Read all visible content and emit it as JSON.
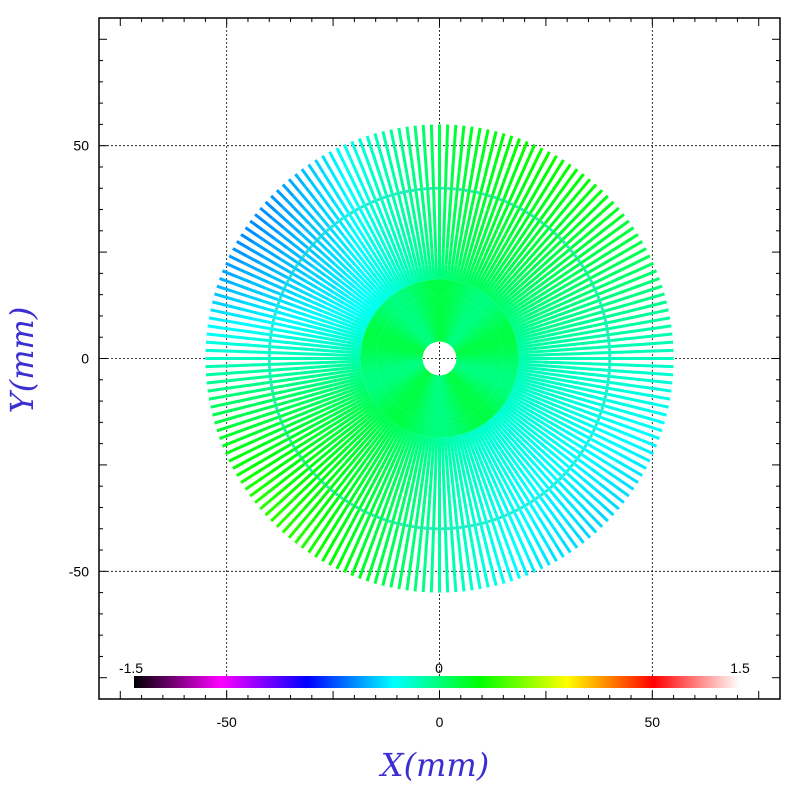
{
  "chart_data": {
    "type": "scatter",
    "title": "",
    "xlabel": "X(mm)",
    "ylabel": "Y(mm)",
    "xlim": [
      -80,
      80
    ],
    "ylim": [
      -80,
      80
    ],
    "grid": true,
    "x_ticks": [
      -50,
      0,
      50
    ],
    "y_ticks": [
      -50,
      0,
      50
    ],
    "x_tick_labels": [
      "-50",
      "0",
      "50"
    ],
    "y_tick_labels": [
      "-50",
      "0",
      "50"
    ],
    "colorbar": {
      "range": [
        -1.5,
        1.5
      ],
      "labels": [
        "-1.5",
        "0",
        "1.5"
      ],
      "stops": [
        "#000000",
        "#ff00ff",
        "#0000ff",
        "#00ffff",
        "#00ff00",
        "#ffff00",
        "#ff0000",
        "#ffffff"
      ]
    },
    "pattern": {
      "shape": "radial spokes",
      "spoke_count": 180,
      "outer_radius": 55,
      "ring_radius": 40,
      "value_range": [
        -0.7,
        0.5
      ]
    }
  }
}
